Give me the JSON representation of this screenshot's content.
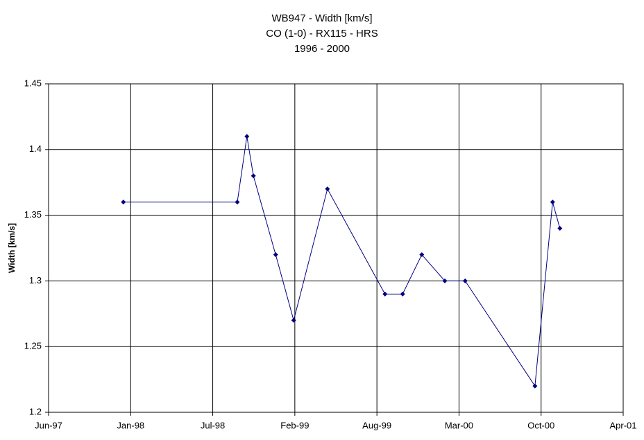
{
  "chart_data": {
    "type": "line",
    "title": "WB947 - Width [km/s]",
    "subtitle": "CO (1-0) - RX115 - HRS",
    "subtitle2": "1996 - 2000",
    "y_label": "Width [km/s]",
    "x": [
      35785,
      36082,
      36107,
      36124,
      36182,
      36229,
      36317,
      36467,
      36513,
      36563,
      36623,
      36676,
      36858,
      36904,
      36923
    ],
    "series": [
      {
        "name": "Width",
        "color": "#000080",
        "values": [
          1.36,
          1.36,
          1.41,
          1.38,
          1.32,
          1.27,
          1.37,
          1.29,
          1.29,
          1.32,
          1.3,
          1.3,
          1.22,
          1.36,
          1.34
        ]
      }
    ],
    "xlim": [
      35590,
      37088
    ],
    "xticks": [
      {
        "value": 35590,
        "label": "Jun-97"
      },
      {
        "value": 35804,
        "label": "Jan-98"
      },
      {
        "value": 36018,
        "label": "Jul-98"
      },
      {
        "value": 36232,
        "label": "Feb-99"
      },
      {
        "value": 36446,
        "label": "Aug-99"
      },
      {
        "value": 36660,
        "label": "Mar-00"
      },
      {
        "value": 36874,
        "label": "Oct-00"
      },
      {
        "value": 37088,
        "label": "Apr-01"
      }
    ],
    "ylim": [
      1.2,
      1.45
    ],
    "yticks": [
      1.2,
      1.25,
      1.3,
      1.35,
      1.4,
      1.45
    ],
    "grid": true
  }
}
